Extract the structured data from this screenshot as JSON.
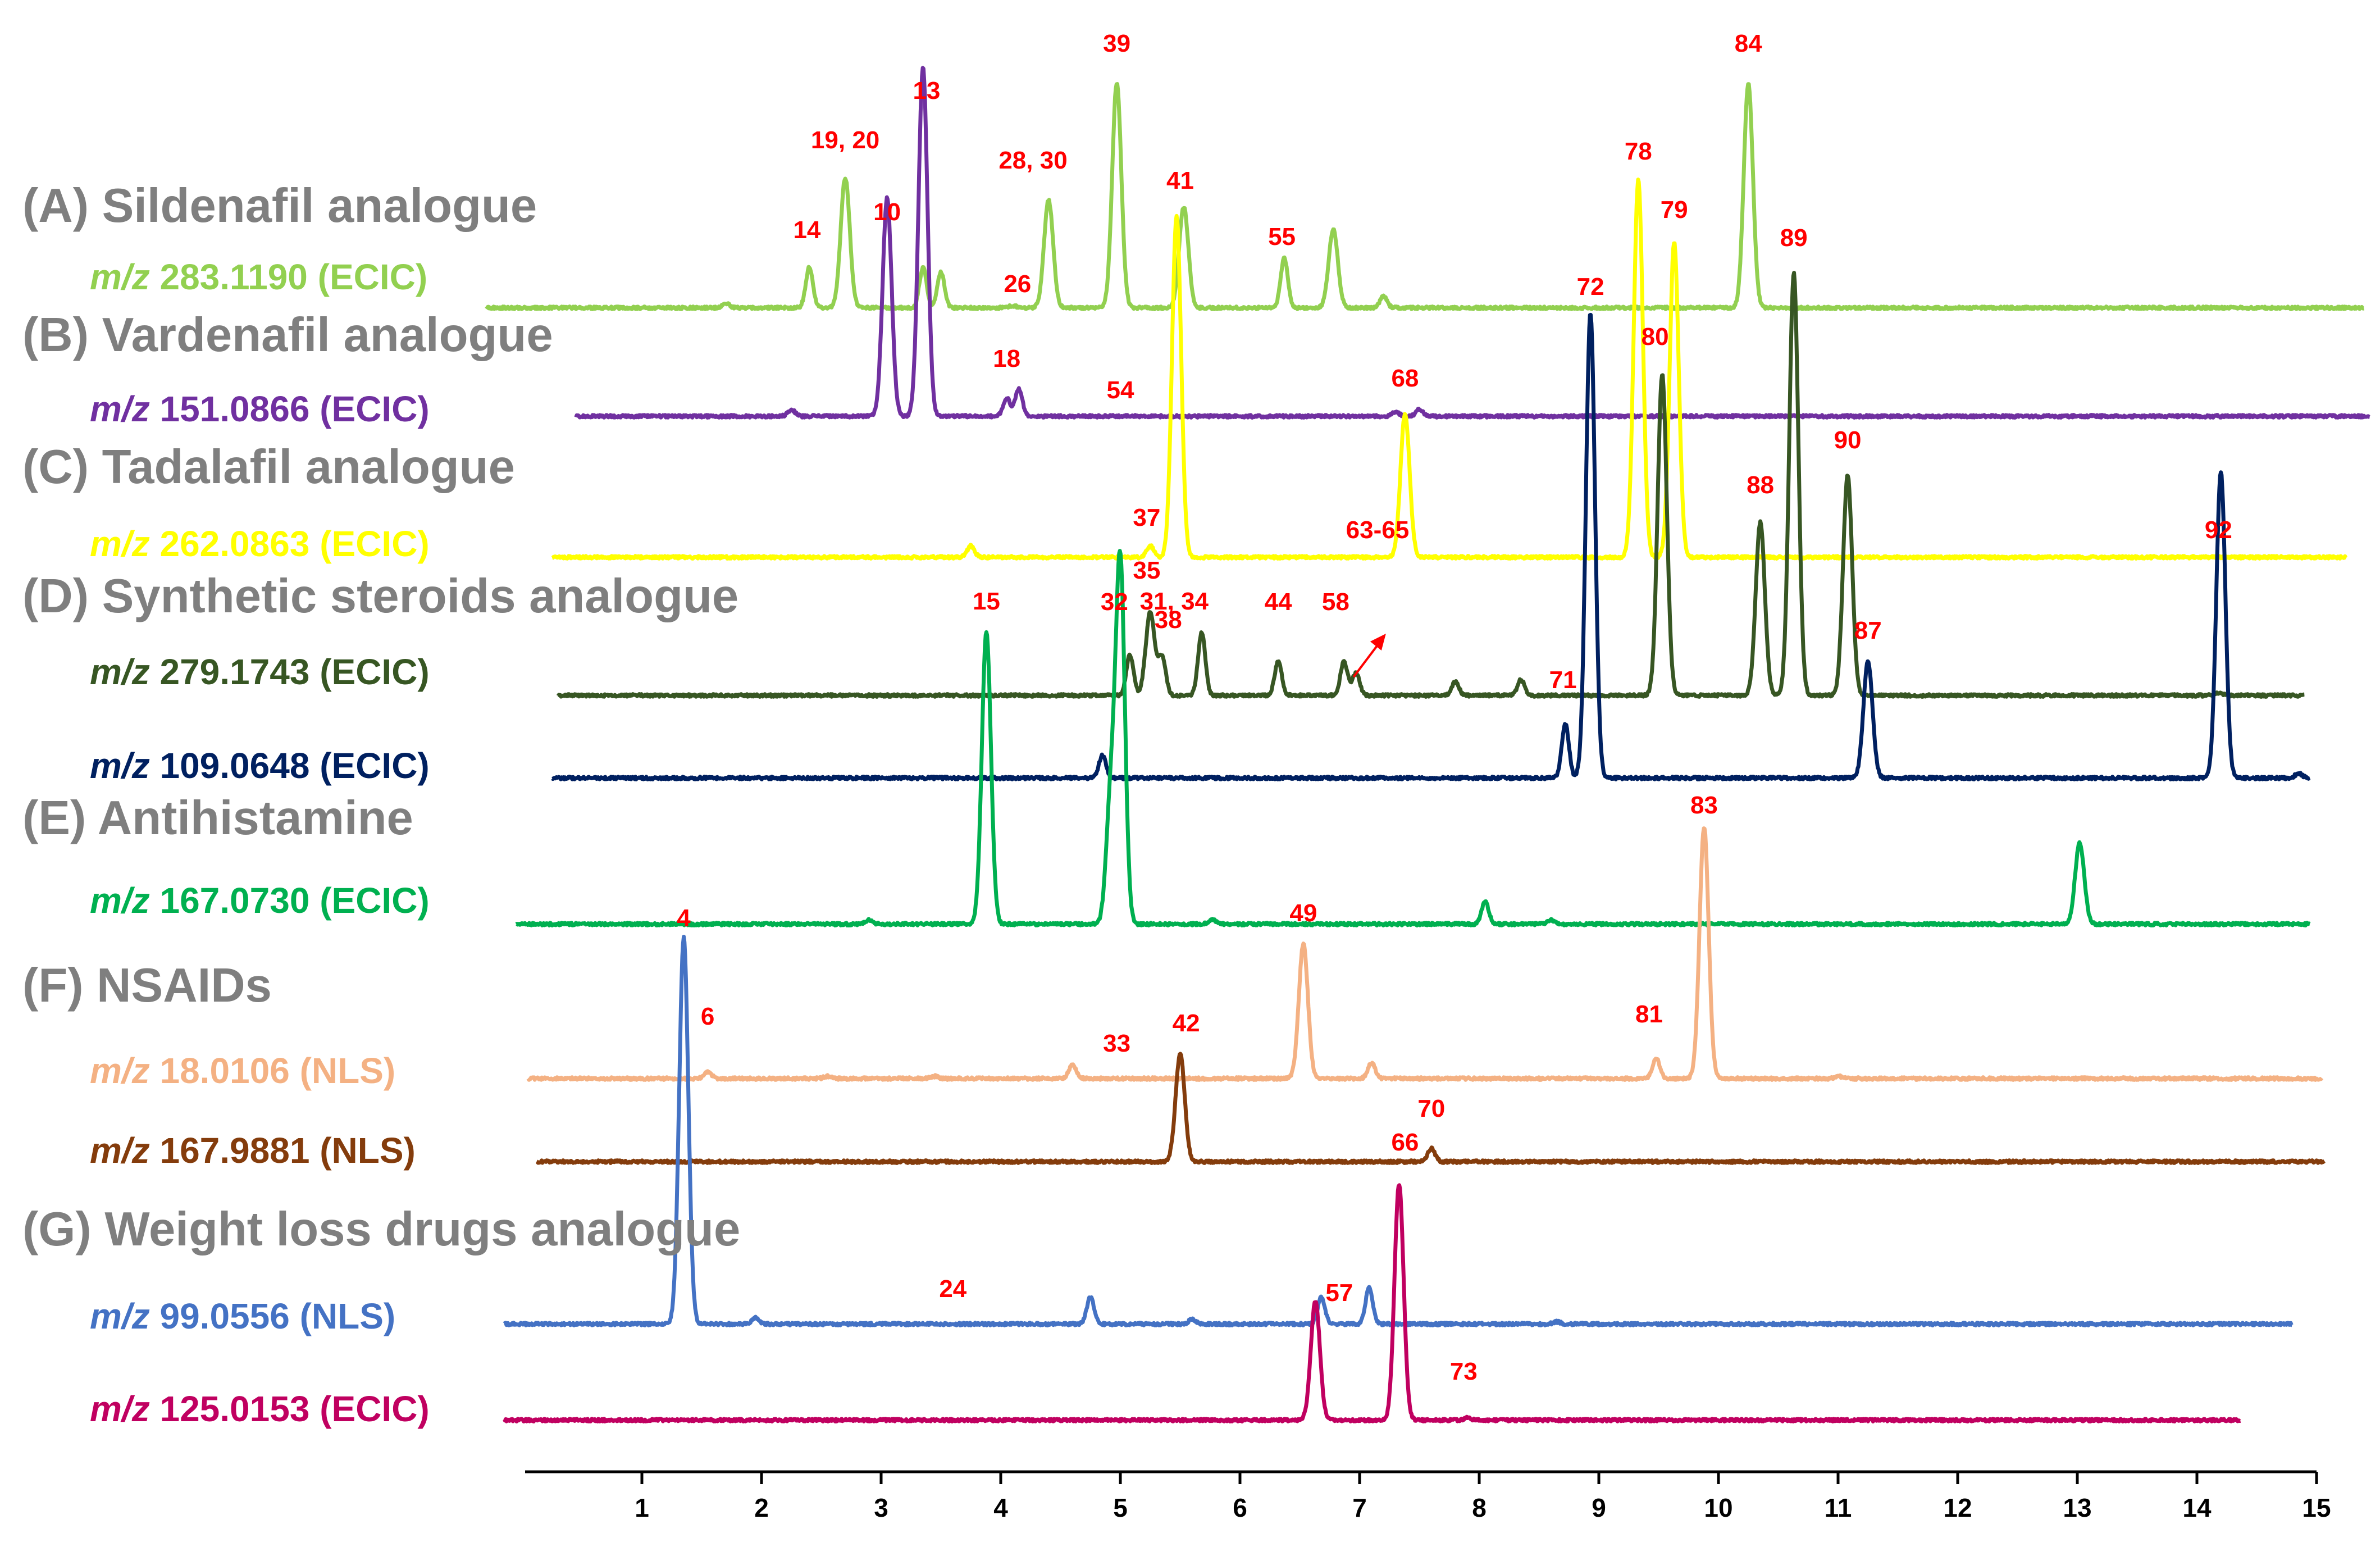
{
  "chart_data": {
    "type": "line",
    "title": "",
    "xlabel": "",
    "ylabel": "",
    "xlim": [
      0,
      15
    ],
    "ylim": [
      0,
      1
    ],
    "grid": false,
    "x_ticks": [
      "1",
      "2",
      "3",
      "4",
      "5",
      "6",
      "7",
      "8",
      "9",
      "10",
      "11",
      "12",
      "13",
      "14",
      "15"
    ],
    "groups": [
      {
        "id": "A",
        "title": "(A) Sildenafil analogue"
      },
      {
        "id": "B",
        "title": "(B) Vardenafil analogue"
      },
      {
        "id": "C",
        "title": "(C) Tadalafil analogue"
      },
      {
        "id": "D",
        "title": "(D) Synthetic steroids analogue"
      },
      {
        "id": "E",
        "title": "(E)  Antihistamine"
      },
      {
        "id": "F",
        "title": "(F)  NSAIDs"
      },
      {
        "id": "G",
        "title": "(G) Weight loss drugs analogue"
      }
    ],
    "series": [
      {
        "name": "m/z 283.1190 (ECIC)",
        "mz": "m/z",
        "rest": " 283.1190 (ECIC)",
        "color": "#92d050",
        "group": "A",
        "x_start": -0.3,
        "x_end": 15.4,
        "peaks": [
          [
            1.7,
            0.02
          ],
          [
            2.4,
            0.18
          ],
          [
            2.7,
            0.58
          ],
          [
            3.35,
            0.18
          ],
          [
            3.5,
            0.16
          ],
          [
            4.1,
            0.01
          ],
          [
            4.4,
            0.48
          ],
          [
            4.97,
            1.0
          ],
          [
            5.53,
            0.45
          ],
          [
            6.37,
            0.22
          ],
          [
            6.78,
            0.35
          ],
          [
            7.2,
            0.05
          ],
          [
            10.25,
            1.0
          ]
        ],
        "labels": [
          {
            "text": "14",
            "x": 2.38,
            "y": 0.31
          },
          {
            "text": "19, 20",
            "x": 2.7,
            "y": 0.71
          },
          {
            "text": "10",
            "x": 3.05,
            "y": 0.39
          },
          {
            "text": "13",
            "x": 3.38,
            "y": 0.93
          },
          {
            "text": "26",
            "x": 4.14,
            "y": 0.07
          },
          {
            "text": "28, 30",
            "x": 4.27,
            "y": 0.62
          },
          {
            "text": "39",
            "x": 4.97,
            "y": 1.14
          },
          {
            "text": "55",
            "x": 6.35,
            "y": 0.28
          },
          {
            "text": "84",
            "x": 10.25,
            "y": 1.14
          }
        ]
      },
      {
        "name": "m/z 151.0866 (ECIC)",
        "mz": "m/z",
        "rest": " 151.0866 (ECIC)",
        "color": "#7030a0",
        "group": "B",
        "x_start": 0.45,
        "x_end": 15.45,
        "peaks": [
          [
            2.25,
            0.03
          ],
          [
            3.05,
            0.97
          ],
          [
            3.35,
            1.55
          ],
          [
            4.05,
            0.08
          ],
          [
            4.15,
            0.12
          ],
          [
            7.3,
            0.02
          ],
          [
            7.5,
            0.03
          ]
        ],
        "labels": [
          {
            "text": "18",
            "x": 4.05,
            "y": 0.22
          },
          {
            "text": "54",
            "x": 5.0,
            "y": 0.08
          }
        ]
      },
      {
        "name": "m/z 262.0863 (ECIC)",
        "mz": "m/z",
        "rest": " 262.0863 (ECIC)",
        "color": "#ffff00",
        "group": "C",
        "x_start": 0.25,
        "x_end": 15.25,
        "peaks": [
          [
            3.75,
            0.05
          ],
          [
            5.25,
            0.05
          ],
          [
            5.47,
            1.52
          ],
          [
            7.38,
            0.64
          ],
          [
            9.33,
            1.68
          ],
          [
            9.63,
            1.4
          ]
        ],
        "labels": [
          {
            "text": "41",
            "x": 5.5,
            "y": 1.64
          },
          {
            "text": "37",
            "x": 5.22,
            "y": 0.14
          },
          {
            "text": "68",
            "x": 7.38,
            "y": 0.76
          },
          {
            "text": "78",
            "x": 9.33,
            "y": 1.77
          },
          {
            "text": "79",
            "x": 9.63,
            "y": 1.51
          }
        ]
      },
      {
        "name": "m/z 279.1743 (ECIC)",
        "mz": "m/z",
        "rest": " 279.1743 (ECIC)",
        "color": "#375623",
        "group": "D",
        "x_start": 0.3,
        "x_end": 14.9,
        "peaks": [
          [
            5.08,
            0.18
          ],
          [
            5.25,
            0.37
          ],
          [
            5.35,
            0.17
          ],
          [
            5.68,
            0.28
          ],
          [
            6.32,
            0.15
          ],
          [
            6.87,
            0.15
          ],
          [
            6.97,
            0.1
          ],
          [
            7.8,
            0.06
          ],
          [
            8.35,
            0.07
          ],
          [
            9.53,
            1.43
          ],
          [
            10.35,
            0.77
          ],
          [
            10.63,
            1.88
          ],
          [
            11.08,
            0.98
          ],
          [
            14.18,
            0.01
          ]
        ],
        "labels": [
          {
            "text": "32",
            "x": 4.95,
            "y": 0.38
          },
          {
            "text": "35",
            "x": 5.22,
            "y": 0.52
          },
          {
            "text": "38",
            "x": 5.4,
            "y": 0.3
          },
          {
            "text": "44",
            "x": 6.32,
            "y": 0.38
          },
          {
            "text": "58",
            "x": 6.8,
            "y": 0.38
          },
          {
            "text": "63-65",
            "x": 7.15,
            "y": 0.7
          },
          {
            "text": "80",
            "x": 9.47,
            "y": 1.56
          },
          {
            "text": "88",
            "x": 10.35,
            "y": 0.9
          },
          {
            "text": "89",
            "x": 10.63,
            "y": 2.0
          },
          {
            "text": "90",
            "x": 11.08,
            "y": 1.1
          },
          {
            "text": "92",
            "x": 14.18,
            "y": 0.7
          }
        ]
      },
      {
        "name": "m/z 109.0648 (ECIC)",
        "mz": "m/z",
        "rest": " 109.0648 (ECIC)",
        "color": "#002060",
        "group": "D",
        "x_start": 0.25,
        "x_end": 14.95,
        "peaks": [
          [
            4.85,
            0.1
          ],
          [
            8.72,
            0.24
          ],
          [
            8.93,
            2.07
          ],
          [
            11.25,
            0.52
          ],
          [
            14.2,
            1.36
          ],
          [
            14.85,
            0.02
          ]
        ],
        "labels": [
          {
            "text": "71",
            "x": 8.7,
            "y": 0.4
          },
          {
            "text": "72",
            "x": 8.93,
            "y": 2.15
          },
          {
            "text": "87",
            "x": 11.25,
            "y": 0.62
          }
        ]
      },
      {
        "name": "m/z 167.0730 (ECIC)",
        "mz": "m/z",
        "rest": " 167.0730 (ECIC)",
        "color": "#00b050",
        "group": "E",
        "x_start": -0.05,
        "x_end": 14.95,
        "peaks": [
          [
            2.9,
            0.02
          ],
          [
            3.88,
            1.3
          ],
          [
            4.92,
            0.55
          ],
          [
            5.0,
            1.6
          ],
          [
            5.77,
            0.02
          ],
          [
            8.05,
            0.1
          ],
          [
            8.6,
            0.02
          ],
          [
            13.02,
            0.36
          ]
        ],
        "labels": [
          {
            "text": "15",
            "x": 3.88,
            "y": 1.4
          },
          {
            "text": "31, 34",
            "x": 5.45,
            "y": 1.4
          }
        ]
      },
      {
        "name": "m/z 18.0106 (NLS)",
        "mz": "m/z",
        "rest": " 18.0106 (NLS)",
        "color": "#f4b183",
        "group": "F",
        "x_start": 0.05,
        "x_end": 15.05,
        "peaks": [
          [
            1.55,
            0.03
          ],
          [
            2.55,
            0.01
          ],
          [
            3.45,
            0.01
          ],
          [
            4.6,
            0.06
          ],
          [
            6.53,
            0.6
          ],
          [
            7.1,
            0.07
          ],
          [
            9.48,
            0.09
          ],
          [
            9.88,
            1.12
          ],
          [
            11.0,
            0.01
          ]
        ],
        "labels": [
          {
            "text": "6",
            "x": 1.55,
            "y": 0.24
          },
          {
            "text": "33",
            "x": 4.97,
            "y": 0.12
          },
          {
            "text": "49",
            "x": 6.53,
            "y": 0.7
          },
          {
            "text": "81",
            "x": 9.42,
            "y": 0.25
          },
          {
            "text": "83",
            "x": 9.88,
            "y": 1.18
          }
        ]
      },
      {
        "name": "m/z 167.9881 (NLS)",
        "mz": "m/z",
        "rest": " 167.9881 (NLS)",
        "color": "#843c0c",
        "group": "F",
        "x_start": 0.12,
        "x_end": 15.07,
        "peaks": [
          [
            5.5,
            0.48
          ],
          [
            7.6,
            0.06
          ]
        ],
        "labels": [
          {
            "text": "42",
            "x": 5.55,
            "y": 0.58
          },
          {
            "text": "70",
            "x": 7.6,
            "y": 0.2
          }
        ]
      },
      {
        "name": "m/z 99.0556 (NLS)",
        "mz": "m/z",
        "rest": " 99.0556 (NLS)",
        "color": "#4472c4",
        "group": "G",
        "x_start": -0.15,
        "x_end": 14.8,
        "peaks": [
          [
            1.35,
            1.72
          ],
          [
            1.95,
            0.03
          ],
          [
            4.75,
            0.12
          ],
          [
            5.6,
            0.02
          ],
          [
            6.68,
            0.12
          ],
          [
            7.08,
            0.16
          ],
          [
            8.65,
            0.01
          ]
        ],
        "labels": [
          {
            "text": "4",
            "x": 1.35,
            "y": 1.77
          },
          {
            "text": "24",
            "x": 3.6,
            "y": 0.12
          }
        ]
      },
      {
        "name": "m/z 125.0153 (ECIC)",
        "mz": "m/z",
        "rest": " 125.0153 (ECIC)",
        "color": "#c00060",
        "group": "G",
        "x_start": -0.15,
        "x_end": 14.37,
        "peaks": [
          [
            6.63,
            0.53
          ],
          [
            7.33,
            1.05
          ],
          [
            7.9,
            0.01
          ]
        ],
        "labels": [
          {
            "text": "57",
            "x": 6.83,
            "y": 0.53
          },
          {
            "text": "66",
            "x": 7.38,
            "y": 1.2
          },
          {
            "text": "73",
            "x": 7.87,
            "y": 0.18
          }
        ]
      }
    ]
  }
}
